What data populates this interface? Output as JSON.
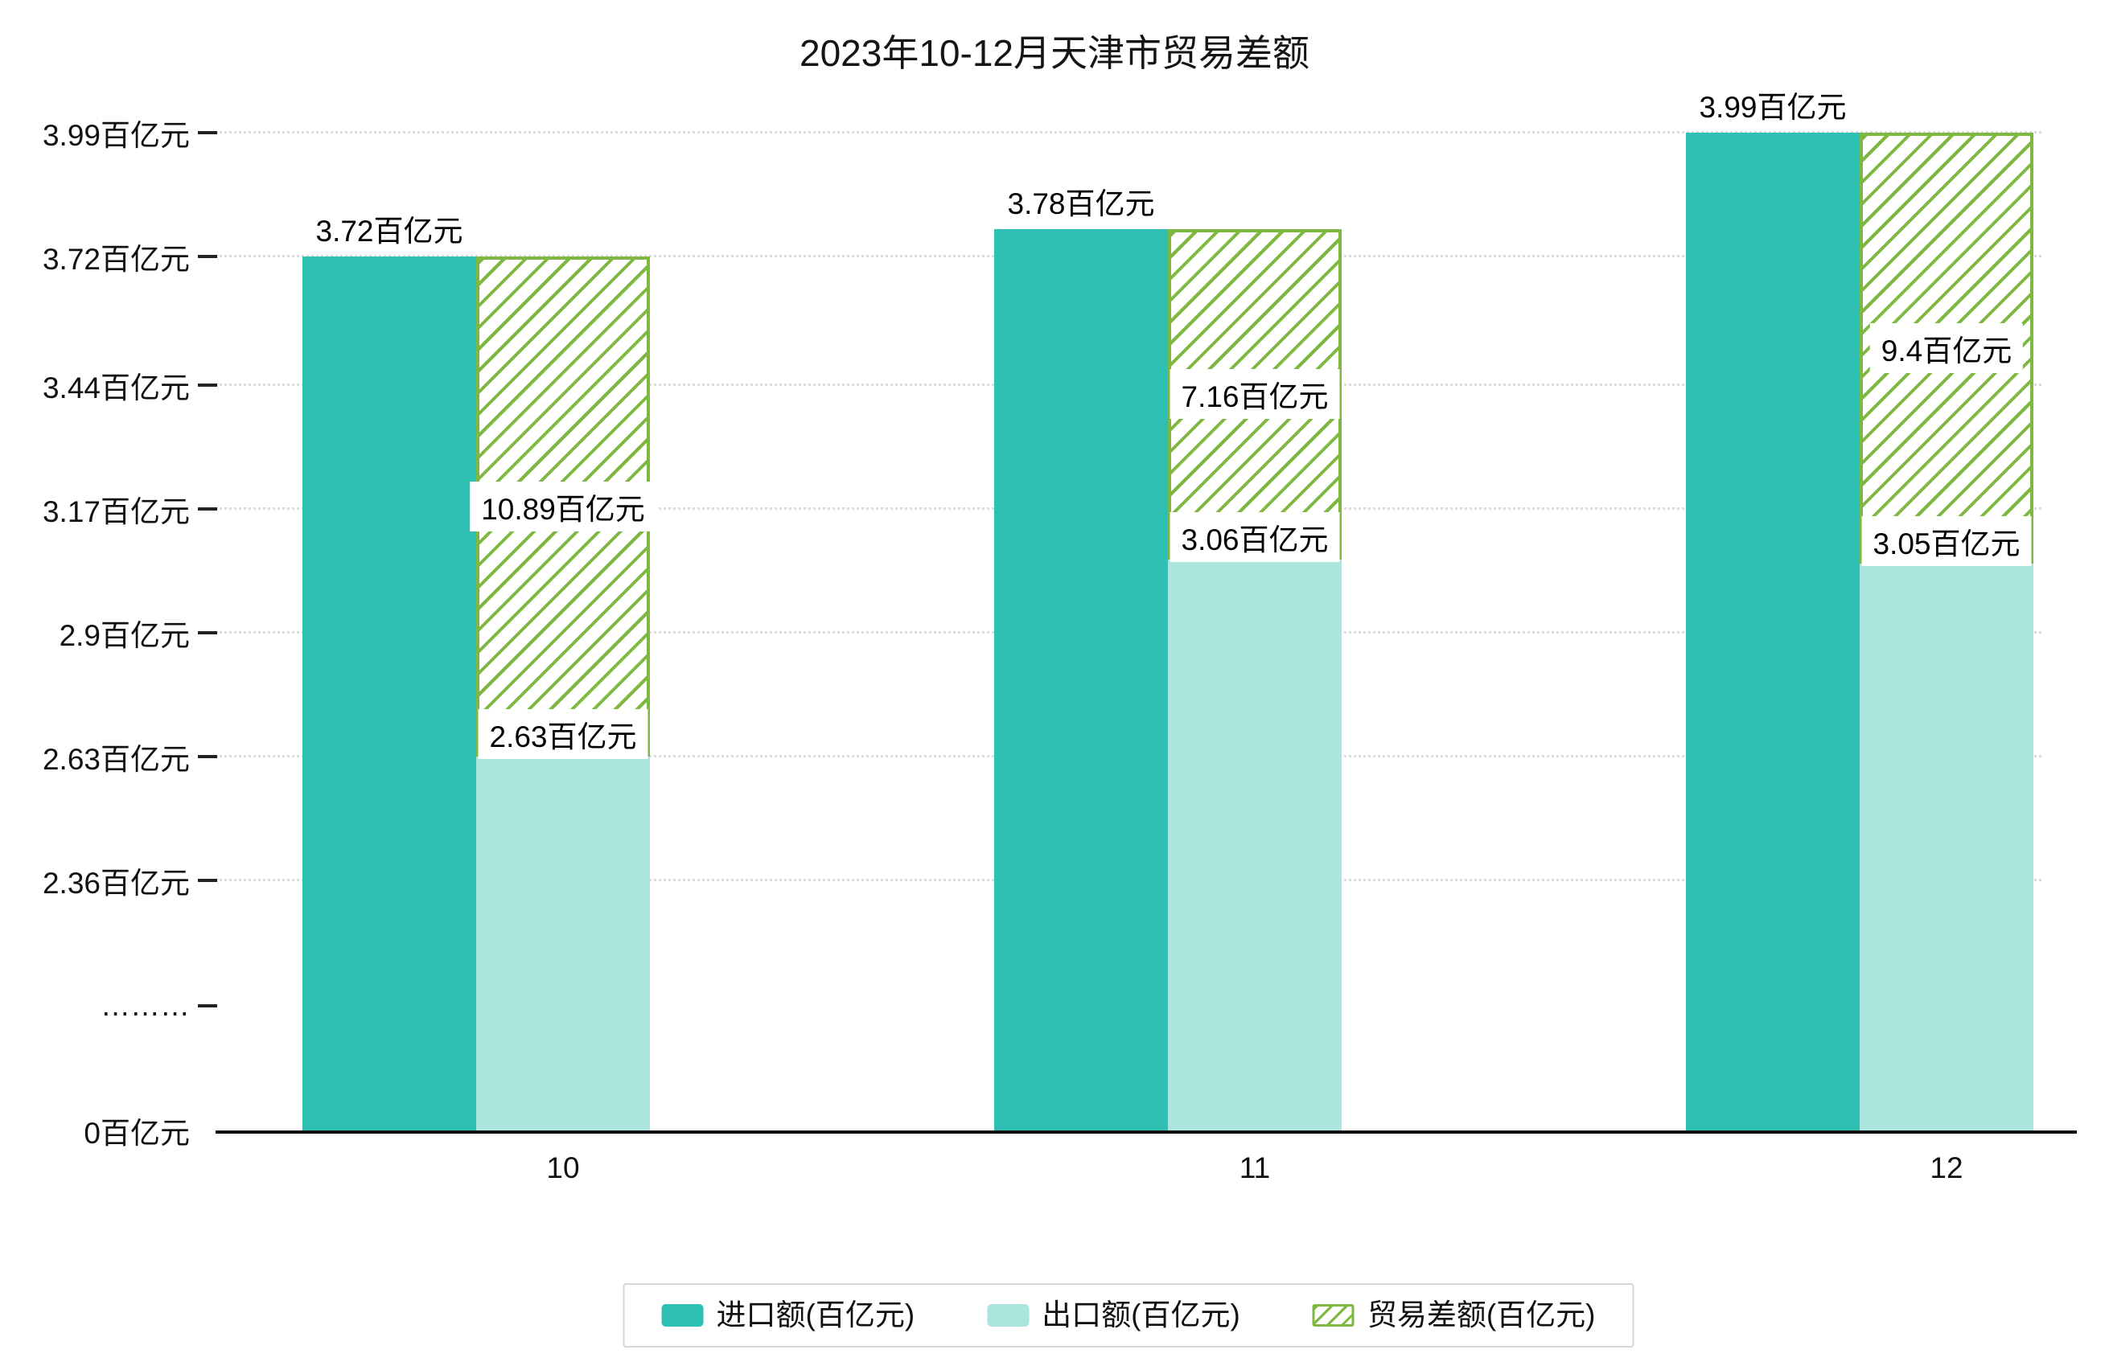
{
  "title": "2023年10-12月天津市贸易差额",
  "colors": {
    "import": "#2ec0b2",
    "export": "#ace5de",
    "diff": "#7eb840",
    "axis": "#111111",
    "grid": "#dcdcdc",
    "text": "#111111"
  },
  "y_axis": {
    "unit": "百亿元",
    "ticks": [
      {
        "label": "3.99百亿元",
        "value": 3.99
      },
      {
        "label": "3.72百亿元",
        "value": 3.72
      },
      {
        "label": "3.44百亿元",
        "value": 3.44
      },
      {
        "label": "3.17百亿元",
        "value": 3.17
      },
      {
        "label": "2.9百亿元",
        "value": 2.9
      },
      {
        "label": "2.63百亿元",
        "value": 2.63
      },
      {
        "label": "2.36百亿元",
        "value": 2.36
      },
      {
        "label": "………",
        "value": null
      },
      {
        "label": "0百亿元",
        "value": 0
      }
    ]
  },
  "chart_data": {
    "type": "bar",
    "title": "2023年10-12月天津市贸易差额",
    "categories": [
      "10",
      "11",
      "12"
    ],
    "xlabel": "",
    "ylabel": "",
    "y_axis_break": true,
    "ylim_display": [
      0,
      3.99
    ],
    "grid": "dotted-horizontal",
    "legend_position": "bottom",
    "series": [
      {
        "name": "进口额(百亿元)",
        "type": "bar",
        "values": [
          3.72,
          3.78,
          3.99
        ],
        "data_labels": [
          "3.72百亿元",
          "3.78百亿元",
          "3.99百亿元"
        ]
      },
      {
        "name": "出口额(百亿元)",
        "type": "bar",
        "values": [
          2.63,
          3.06,
          3.05
        ],
        "data_labels": [
          "2.63百亿元",
          "3.06百亿元",
          "3.05百亿元"
        ]
      },
      {
        "name": "贸易差额(百亿元)",
        "type": "bar",
        "style": "hatched-outline",
        "values": [
          10.89,
          7.16,
          9.4
        ],
        "data_labels": [
          "10.89百亿元",
          "7.16百亿元",
          "9.4百亿元"
        ],
        "span_from": [
          2.63,
          3.06,
          3.05
        ],
        "span_to": [
          3.72,
          3.78,
          3.99
        ]
      }
    ]
  },
  "legend": {
    "items": [
      {
        "key": "import",
        "label": "进口额(百亿元)"
      },
      {
        "key": "export",
        "label": "出口额(百亿元)"
      },
      {
        "key": "diff",
        "label": "贸易差额(百亿元)"
      }
    ]
  }
}
